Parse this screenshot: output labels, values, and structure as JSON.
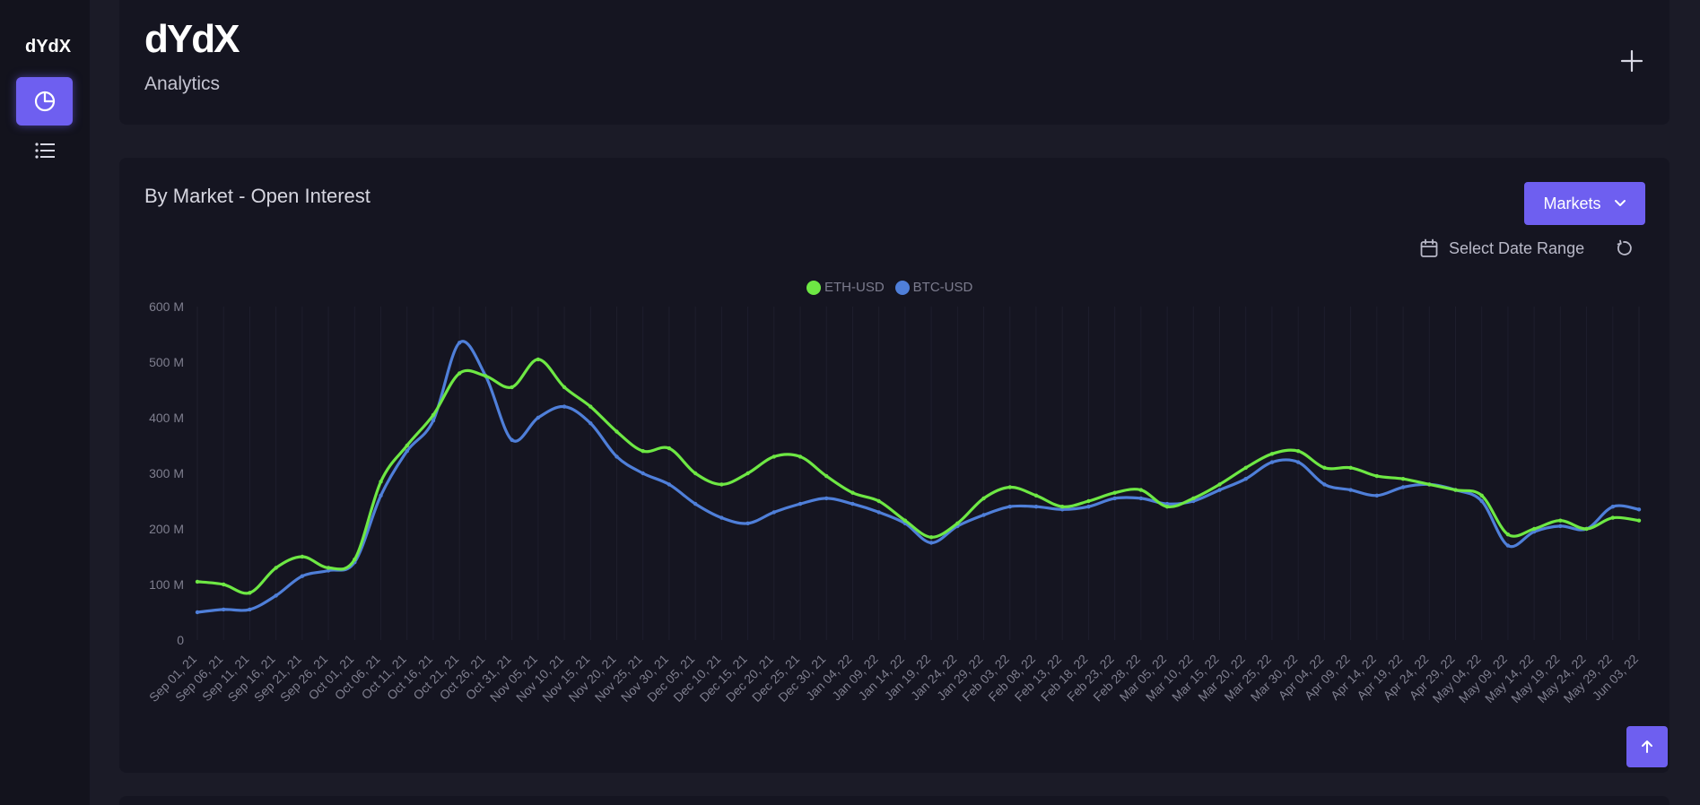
{
  "brand": {
    "name": "dYdX"
  },
  "header": {
    "subtitle": "Analytics"
  },
  "chart_card": {
    "title": "By Market - Open Interest",
    "markets_label": "Markets",
    "date_range_label": "Select Date Range"
  },
  "colors": {
    "accent": "#6e5ff0",
    "eth": "#6ee844",
    "btc": "#4f7fd9",
    "background": "#151521"
  },
  "icons": {
    "nav_active": "pie-chart-icon",
    "nav_list": "list-icon",
    "add": "plus-icon",
    "dropdown": "chevron-down-icon",
    "calendar": "calendar-icon",
    "refresh": "refresh-icon",
    "scroll_top": "arrow-up-icon"
  },
  "chart_data": {
    "type": "line",
    "title": "",
    "xlabel": "",
    "ylabel": "",
    "ylim": [
      0,
      600
    ],
    "y_ticks": [
      "0",
      "100 M",
      "200 M",
      "300 M",
      "400 M",
      "500 M",
      "600 M"
    ],
    "legend_position": "top-center",
    "grid": true,
    "categories": [
      "Sep 01, 21",
      "Sep 06, 21",
      "Sep 11, 21",
      "Sep 16, 21",
      "Sep 21, 21",
      "Sep 26, 21",
      "Oct 01, 21",
      "Oct 06, 21",
      "Oct 11, 21",
      "Oct 16, 21",
      "Oct 21, 21",
      "Oct 26, 21",
      "Oct 31, 21",
      "Nov 05, 21",
      "Nov 10, 21",
      "Nov 15, 21",
      "Nov 20, 21",
      "Nov 25, 21",
      "Nov 30, 21",
      "Dec 05, 21",
      "Dec 10, 21",
      "Dec 15, 21",
      "Dec 20, 21",
      "Dec 25, 21",
      "Dec 30, 21",
      "Jan 04, 22",
      "Jan 09, 22",
      "Jan 14, 22",
      "Jan 19, 22",
      "Jan 24, 22",
      "Jan 29, 22",
      "Feb 03, 22",
      "Feb 08, 22",
      "Feb 13, 22",
      "Feb 18, 22",
      "Feb 23, 22",
      "Feb 28, 22",
      "Mar 05, 22",
      "Mar 10, 22",
      "Mar 15, 22",
      "Mar 20, 22",
      "Mar 25, 22",
      "Mar 30, 22",
      "Apr 04, 22",
      "Apr 09, 22",
      "Apr 14, 22",
      "Apr 19, 22",
      "Apr 24, 22",
      "Apr 29, 22",
      "May 04, 22",
      "May 09, 22",
      "May 14, 22",
      "May 19, 22",
      "May 24, 22",
      "May 29, 22",
      "Jun 03, 22"
    ],
    "series": [
      {
        "name": "ETH-USD",
        "color": "#6ee844",
        "values": [
          105,
          100,
          85,
          130,
          150,
          130,
          145,
          285,
          350,
          405,
          480,
          475,
          455,
          505,
          455,
          420,
          375,
          340,
          345,
          300,
          280,
          300,
          330,
          330,
          295,
          265,
          250,
          215,
          185,
          210,
          255,
          275,
          260,
          240,
          250,
          265,
          270,
          240,
          255,
          280,
          310,
          335,
          340,
          310,
          310,
          295,
          290,
          280,
          270,
          260,
          190,
          200,
          215,
          200,
          220,
          215
        ]
      },
      {
        "name": "BTC-USD",
        "color": "#4f7fd9",
        "values": [
          50,
          55,
          55,
          80,
          115,
          125,
          140,
          260,
          340,
          395,
          535,
          475,
          360,
          400,
          420,
          390,
          330,
          300,
          280,
          245,
          220,
          210,
          230,
          245,
          255,
          245,
          230,
          210,
          175,
          205,
          225,
          240,
          240,
          235,
          240,
          255,
          255,
          245,
          250,
          270,
          290,
          320,
          320,
          280,
          270,
          260,
          275,
          280,
          270,
          250,
          170,
          195,
          205,
          200,
          240,
          235
        ]
      }
    ]
  }
}
